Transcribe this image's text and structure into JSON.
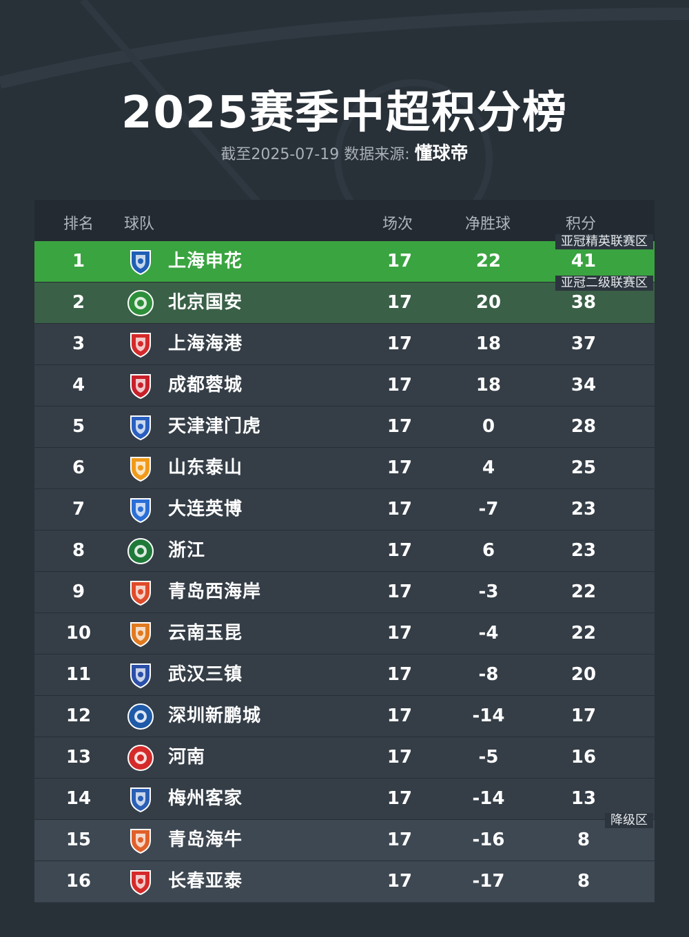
{
  "header": {
    "title": "2025赛季中超积分榜",
    "subtitle_prefix": "截至2025-07-19 数据来源: ",
    "brand": "懂球帝"
  },
  "columns": {
    "rank": "排名",
    "team": "球队",
    "played": "场次",
    "gd": "净胜球",
    "pts": "积分"
  },
  "zones": {
    "acl_elite": "亚冠精英联赛区",
    "acl_two": "亚冠二级联赛区",
    "relegation": "降级区"
  },
  "rows": [
    {
      "rank": "1",
      "team": "上海申花",
      "played": "17",
      "gd": "22",
      "pts": "41",
      "logo_color": "#1f5fb5",
      "logo": "shield"
    },
    {
      "rank": "2",
      "team": "北京国安",
      "played": "17",
      "gd": "20",
      "pts": "38",
      "logo_color": "#2e8f3a",
      "logo": "circle"
    },
    {
      "rank": "3",
      "team": "上海海港",
      "played": "17",
      "gd": "18",
      "pts": "37",
      "logo_color": "#d42a2a",
      "logo": "shield"
    },
    {
      "rank": "4",
      "team": "成都蓉城",
      "played": "17",
      "gd": "18",
      "pts": "34",
      "logo_color": "#c8202a",
      "logo": "shield"
    },
    {
      "rank": "5",
      "team": "天津津门虎",
      "played": "17",
      "gd": "0",
      "pts": "28",
      "logo_color": "#2a5fc0",
      "logo": "shield"
    },
    {
      "rank": "6",
      "team": "山东泰山",
      "played": "17",
      "gd": "4",
      "pts": "25",
      "logo_color": "#f09a1a",
      "logo": "shield"
    },
    {
      "rank": "7",
      "team": "大连英博",
      "played": "17",
      "gd": "-7",
      "pts": "23",
      "logo_color": "#2b6fd6",
      "logo": "shield"
    },
    {
      "rank": "8",
      "team": "浙江",
      "played": "17",
      "gd": "6",
      "pts": "23",
      "logo_color": "#1f7a3a",
      "logo": "circle"
    },
    {
      "rank": "9",
      "team": "青岛西海岸",
      "played": "17",
      "gd": "-3",
      "pts": "22",
      "logo_color": "#e04b2a",
      "logo": "shield"
    },
    {
      "rank": "10",
      "team": "云南玉昆",
      "played": "17",
      "gd": "-4",
      "pts": "22",
      "logo_color": "#e07a20",
      "logo": "shield"
    },
    {
      "rank": "11",
      "team": "武汉三镇",
      "played": "17",
      "gd": "-8",
      "pts": "20",
      "logo_color": "#2a4fa8",
      "logo": "shield"
    },
    {
      "rank": "12",
      "team": "深圳新鹏城",
      "played": "17",
      "gd": "-14",
      "pts": "17",
      "logo_color": "#1e5aa8",
      "logo": "circle"
    },
    {
      "rank": "13",
      "team": "河南",
      "played": "17",
      "gd": "-5",
      "pts": "16",
      "logo_color": "#d42a2a",
      "logo": "circle"
    },
    {
      "rank": "14",
      "team": "梅州客家",
      "played": "17",
      "gd": "-14",
      "pts": "13",
      "logo_color": "#2a5fb5",
      "logo": "shield"
    },
    {
      "rank": "15",
      "team": "青岛海牛",
      "played": "17",
      "gd": "-16",
      "pts": "8",
      "logo_color": "#e0602a",
      "logo": "shield"
    },
    {
      "rank": "16",
      "team": "长春亚泰",
      "played": "17",
      "gd": "-17",
      "pts": "8",
      "logo_color": "#d42a2a",
      "logo": "shield"
    }
  ]
}
